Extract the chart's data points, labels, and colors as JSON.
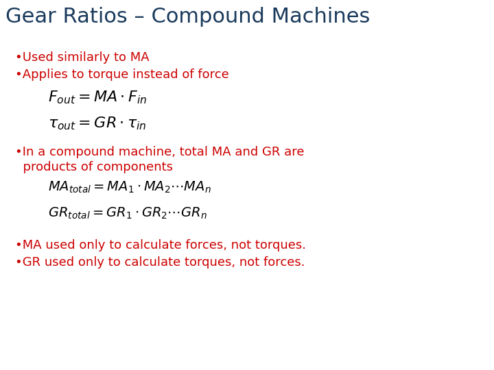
{
  "title": "Gear Ratios – Compound Machines",
  "title_color": "#1a3a5c",
  "title_fontsize": 22,
  "background_color": "#ffffff",
  "bullet_color": "#cc0000",
  "bullet_fontsize": 13,
  "math_fontsize": 16,
  "eq_small_fontsize": 14,
  "bullets_1": [
    "•Used similarly to MA",
    "•Applies to torque instead of force"
  ],
  "eq1": "$F_{out} = MA \\cdot F_{in}$",
  "eq2": "$\\tau_{out} = GR \\cdot \\tau_{in}$",
  "bullet_2a": "•In a compound machine, total MA and GR are",
  "bullet_2b": "  products of components",
  "eq3": "$MA_{total} = MA_1 \\cdot MA_2 \\cdots MA_n$",
  "eq4": "$GR_{total} = GR_1 \\cdot GR_2 \\cdots GR_n$",
  "bullets_3": [
    "•MA used only to calculate forces, not torques.",
    "•GR used only to calculate torques, not forces."
  ]
}
